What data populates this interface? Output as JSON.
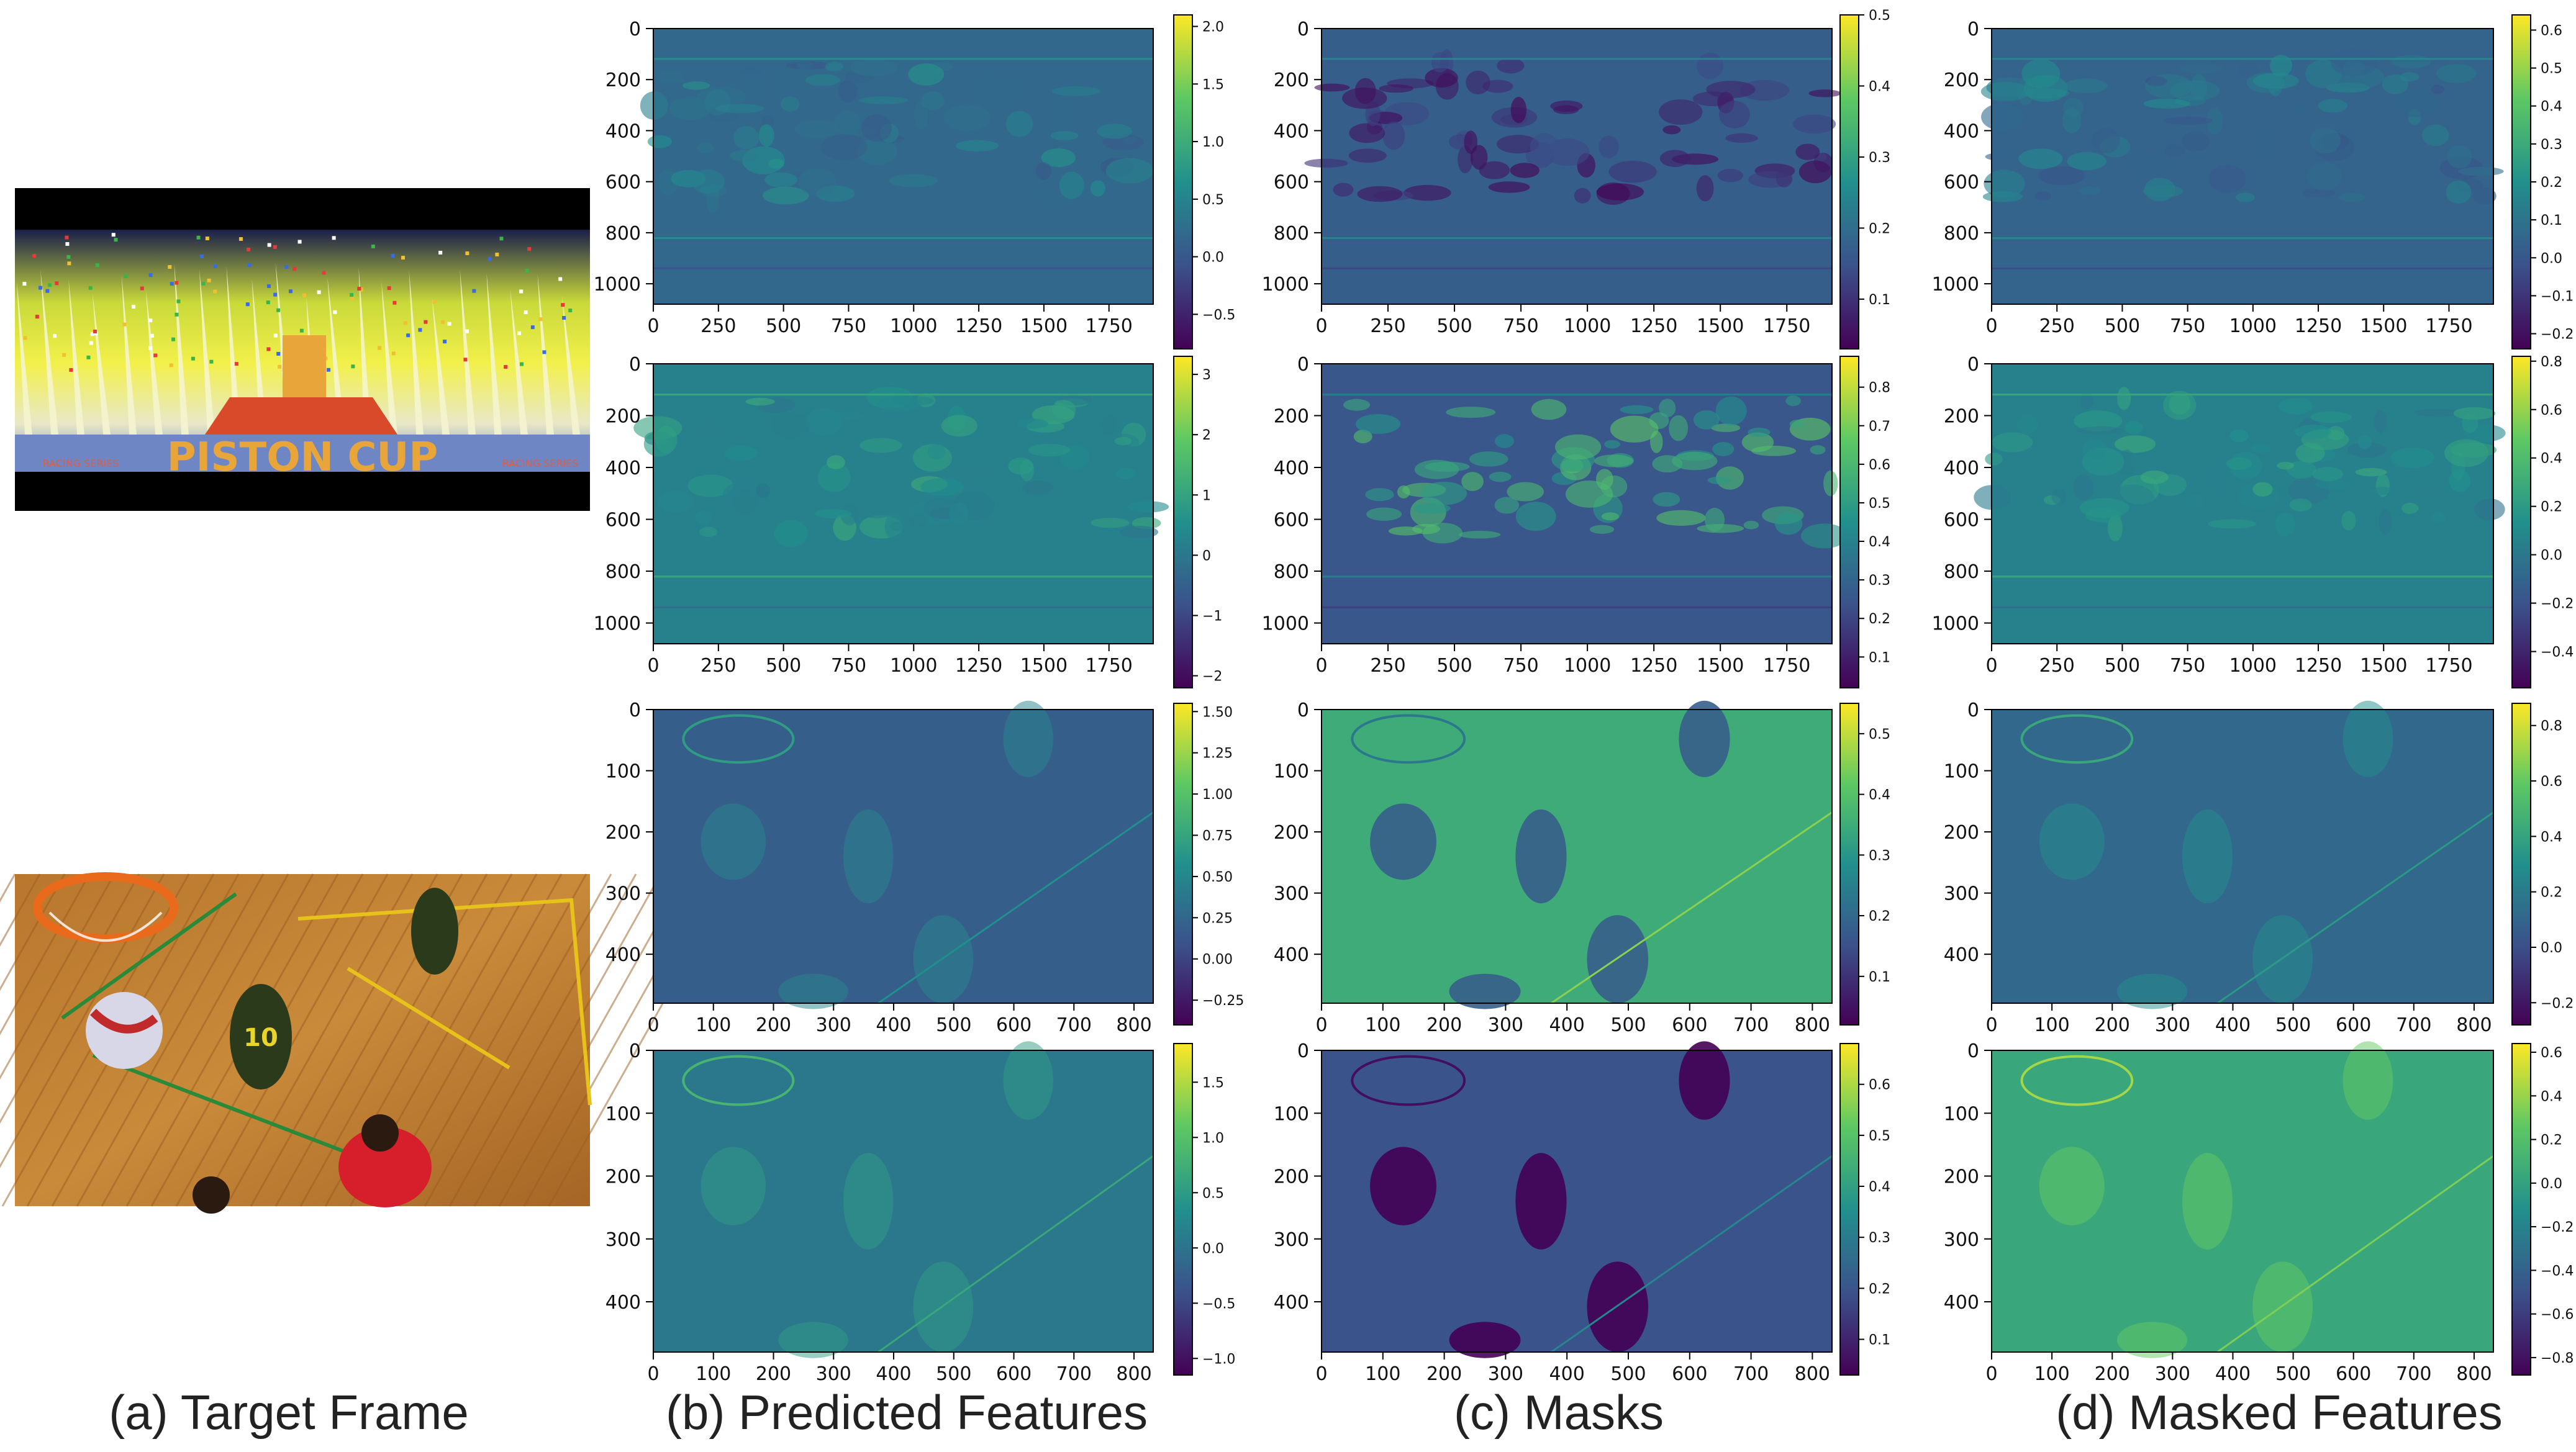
{
  "figure": {
    "captions": [
      "(a) Target Frame",
      "(b) Predicted Features",
      "(c) Masks",
      "(d) Masked Features"
    ],
    "frames": [
      {
        "scene": "racing-stadium",
        "banner_text": "PISTON CUP",
        "side_text": "RACING SERIES"
      },
      {
        "scene": "basketball-court",
        "jersey_number": "10"
      }
    ]
  },
  "colormap": {
    "name": "viridis",
    "stops": [
      "#440154",
      "#3b528b",
      "#21908d",
      "#5dc863",
      "#fde725"
    ]
  },
  "chart_data": [
    {
      "type": "heatmap",
      "row": 1,
      "column": "b",
      "x_ticks": [
        0,
        250,
        500,
        750,
        1000,
        1250,
        1500,
        1750
      ],
      "y_ticks": [
        0,
        200,
        400,
        600,
        800,
        1000
      ],
      "xlim": [
        0,
        1920
      ],
      "ylim": [
        1080,
        0
      ],
      "colorbar_ticks": [
        "2.0",
        "1.5",
        "1.0",
        "0.5",
        "0.0",
        "−0.5"
      ],
      "colorbar_range": [
        -0.8,
        2.1
      ]
    },
    {
      "type": "heatmap",
      "row": 1,
      "column": "c",
      "x_ticks": [
        0,
        250,
        500,
        750,
        1000,
        1250,
        1500,
        1750
      ],
      "y_ticks": [
        0,
        200,
        400,
        600,
        800,
        1000
      ],
      "xlim": [
        0,
        1920
      ],
      "ylim": [
        1080,
        0
      ],
      "colorbar_ticks": [
        "0.5",
        "0.4",
        "0.3",
        "0.2",
        "0.1"
      ],
      "colorbar_range": [
        0.03,
        0.5
      ]
    },
    {
      "type": "heatmap",
      "row": 1,
      "column": "d",
      "x_ticks": [
        0,
        250,
        500,
        750,
        1000,
        1250,
        1500,
        1750
      ],
      "y_ticks": [
        0,
        200,
        400,
        600,
        800,
        1000
      ],
      "xlim": [
        0,
        1920
      ],
      "ylim": [
        1080,
        0
      ],
      "colorbar_ticks": [
        "0.6",
        "0.5",
        "0.4",
        "0.3",
        "0.2",
        "0.1",
        "0.0",
        "−0.1",
        "−0.2"
      ],
      "colorbar_range": [
        -0.24,
        0.64
      ]
    },
    {
      "type": "heatmap",
      "row": 2,
      "column": "b",
      "x_ticks": [
        0,
        250,
        500,
        750,
        1000,
        1250,
        1500,
        1750
      ],
      "y_ticks": [
        0,
        200,
        400,
        600,
        800,
        1000
      ],
      "xlim": [
        0,
        1920
      ],
      "ylim": [
        1080,
        0
      ],
      "colorbar_ticks": [
        "3",
        "2",
        "1",
        "0",
        "−1",
        "−2"
      ],
      "colorbar_range": [
        -2.2,
        3.3
      ]
    },
    {
      "type": "heatmap",
      "row": 2,
      "column": "c",
      "x_ticks": [
        0,
        250,
        500,
        750,
        1000,
        1250,
        1500,
        1750
      ],
      "y_ticks": [
        0,
        200,
        400,
        600,
        800,
        1000
      ],
      "xlim": [
        0,
        1920
      ],
      "ylim": [
        1080,
        0
      ],
      "colorbar_ticks": [
        "0.8",
        "0.7",
        "0.6",
        "0.5",
        "0.4",
        "0.3",
        "0.2",
        "0.1"
      ],
      "colorbar_range": [
        0.02,
        0.88
      ]
    },
    {
      "type": "heatmap",
      "row": 2,
      "column": "d",
      "x_ticks": [
        0,
        250,
        500,
        750,
        1000,
        1250,
        1500,
        1750
      ],
      "y_ticks": [
        0,
        200,
        400,
        600,
        800,
        1000
      ],
      "xlim": [
        0,
        1920
      ],
      "ylim": [
        1080,
        0
      ],
      "colorbar_ticks": [
        "0.8",
        "0.6",
        "0.4",
        "0.2",
        "0.0",
        "−0.2",
        "−0.4"
      ],
      "colorbar_range": [
        -0.55,
        0.82
      ]
    },
    {
      "type": "heatmap",
      "row": 3,
      "column": "b",
      "x_ticks": [
        0,
        100,
        200,
        300,
        400,
        500,
        600,
        700,
        800
      ],
      "y_ticks": [
        0,
        100,
        200,
        300,
        400
      ],
      "xlim": [
        0,
        832
      ],
      "ylim": [
        480,
        0
      ],
      "colorbar_ticks": [
        "1.50",
        "1.25",
        "1.00",
        "0.75",
        "0.50",
        "0.25",
        "0.00",
        "−0.25"
      ],
      "colorbar_range": [
        -0.4,
        1.55
      ]
    },
    {
      "type": "heatmap",
      "row": 3,
      "column": "c",
      "x_ticks": [
        0,
        100,
        200,
        300,
        400,
        500,
        600,
        700,
        800
      ],
      "y_ticks": [
        0,
        100,
        200,
        300,
        400
      ],
      "xlim": [
        0,
        832
      ],
      "ylim": [
        480,
        0
      ],
      "colorbar_ticks": [
        "0.5",
        "0.4",
        "0.3",
        "0.2",
        "0.1"
      ],
      "colorbar_range": [
        0.02,
        0.55
      ]
    },
    {
      "type": "heatmap",
      "row": 3,
      "column": "d",
      "x_ticks": [
        0,
        100,
        200,
        300,
        400,
        500,
        600,
        700,
        800
      ],
      "y_ticks": [
        0,
        100,
        200,
        300,
        400
      ],
      "xlim": [
        0,
        832
      ],
      "ylim": [
        480,
        0
      ],
      "colorbar_ticks": [
        "0.8",
        "0.6",
        "0.4",
        "0.2",
        "0.0",
        "−0.2"
      ],
      "colorbar_range": [
        -0.28,
        0.88
      ]
    },
    {
      "type": "heatmap",
      "row": 4,
      "column": "b",
      "x_ticks": [
        0,
        100,
        200,
        300,
        400,
        500,
        600,
        700,
        800
      ],
      "y_ticks": [
        0,
        100,
        200,
        300,
        400
      ],
      "xlim": [
        0,
        832
      ],
      "ylim": [
        480,
        0
      ],
      "colorbar_ticks": [
        "1.5",
        "1.0",
        "0.5",
        "0.0",
        "−0.5",
        "−1.0"
      ],
      "colorbar_range": [
        -1.15,
        1.85
      ]
    },
    {
      "type": "heatmap",
      "row": 4,
      "column": "c",
      "x_ticks": [
        0,
        100,
        200,
        300,
        400,
        500,
        600,
        700,
        800
      ],
      "y_ticks": [
        0,
        100,
        200,
        300,
        400
      ],
      "xlim": [
        0,
        832
      ],
      "ylim": [
        480,
        0
      ],
      "colorbar_ticks": [
        "0.6",
        "0.5",
        "0.4",
        "0.3",
        "0.2",
        "0.1"
      ],
      "colorbar_range": [
        0.03,
        0.68
      ]
    },
    {
      "type": "heatmap",
      "row": 4,
      "column": "d",
      "x_ticks": [
        0,
        100,
        200,
        300,
        400,
        500,
        600,
        700,
        800
      ],
      "y_ticks": [
        0,
        100,
        200,
        300,
        400
      ],
      "xlim": [
        0,
        832
      ],
      "ylim": [
        480,
        0
      ],
      "colorbar_ticks": [
        "0.6",
        "0.4",
        "0.2",
        "0.0",
        "−0.2",
        "−0.4",
        "−0.6",
        "−0.8"
      ],
      "colorbar_range": [
        -0.88,
        0.64
      ]
    }
  ]
}
